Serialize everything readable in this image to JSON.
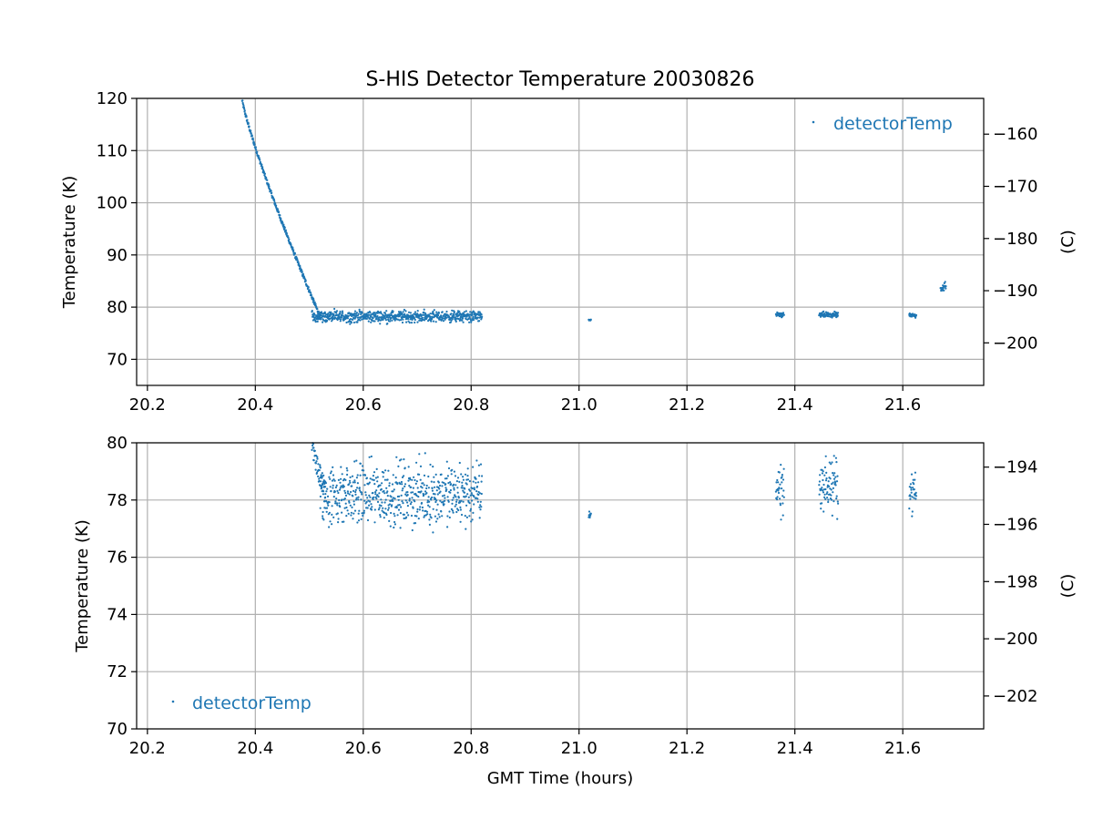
{
  "title": "S-HIS Detector Temperature 20030826",
  "chart_data": [
    {
      "type": "scatter",
      "xlabel": "",
      "ylabel": "Temperature (K)",
      "y2label": "(C)",
      "xlim": [
        20.18,
        21.75
      ],
      "ylim": [
        65,
        120
      ],
      "y2lim": [
        -208.15,
        -153.15
      ],
      "xticks": [
        "20.2",
        "20.4",
        "20.6",
        "20.8",
        "21.0",
        "21.2",
        "21.4",
        "21.6"
      ],
      "yticks": [
        "70",
        "80",
        "90",
        "100",
        "110",
        "120"
      ],
      "y2ticks": [
        "−200",
        "−190",
        "−180",
        "−170",
        "−160"
      ],
      "grid": true,
      "legend": {
        "position": "top-right",
        "entries": [
          "detectorTemp"
        ]
      },
      "color": "#1f77b4",
      "series": [
        {
          "name": "detectorTemp",
          "segments": [
            {
              "x_start": 20.375,
              "x_end": 20.52,
              "y_start": 120.0,
              "y_end": 78.2,
              "shape": "decay",
              "spread": 0.8
            },
            {
              "x_start": 20.505,
              "x_end": 20.82,
              "center": 78.2,
              "spread": 1.6
            },
            {
              "x_start": 21.018,
              "x_end": 21.022,
              "center": 77.5,
              "spread": 0.2
            },
            {
              "x_start": 21.365,
              "x_end": 21.38,
              "center": 78.5,
              "spread": 0.7
            },
            {
              "x_start": 21.445,
              "x_end": 21.48,
              "center": 78.5,
              "spread": 0.8
            },
            {
              "x_start": 21.612,
              "x_end": 21.625,
              "center": 78.4,
              "spread": 0.6
            },
            {
              "x_start": 21.67,
              "x_end": 21.68,
              "center": 83.8,
              "spread": 1.5
            }
          ]
        }
      ]
    },
    {
      "type": "scatter",
      "xlabel": "GMT Time (hours)",
      "ylabel": "Temperature (K)",
      "y2label": "(C)",
      "xlim": [
        20.18,
        21.75
      ],
      "ylim": [
        70,
        80
      ],
      "y2lim": [
        -203.15,
        -193.15
      ],
      "xticks": [
        "20.2",
        "20.4",
        "20.6",
        "20.8",
        "21.0",
        "21.2",
        "21.4",
        "21.6"
      ],
      "yticks": [
        "70",
        "72",
        "74",
        "76",
        "78",
        "80"
      ],
      "y2ticks": [
        "−202",
        "−200",
        "−198",
        "−196",
        "−194"
      ],
      "grid": true,
      "legend": {
        "position": "bottom-left",
        "entries": [
          "detectorTemp"
        ]
      },
      "color": "#1f77b4",
      "series": [
        {
          "name": "detectorTemp",
          "segments": [
            {
              "x_start": 20.505,
              "x_end": 20.53,
              "y_start": 80.0,
              "y_end": 78.2,
              "shape": "decay",
              "spread": 0.8
            },
            {
              "x_start": 20.52,
              "x_end": 20.82,
              "center": 78.2,
              "spread": 1.6
            },
            {
              "x_start": 21.018,
              "x_end": 21.022,
              "center": 77.5,
              "spread": 0.2
            },
            {
              "x_start": 21.365,
              "x_end": 21.38,
              "center": 78.4,
              "spread": 1.4
            },
            {
              "x_start": 21.445,
              "x_end": 21.48,
              "center": 78.5,
              "spread": 1.3
            },
            {
              "x_start": 21.612,
              "x_end": 21.625,
              "center": 78.3,
              "spread": 1.0
            }
          ]
        }
      ]
    }
  ]
}
